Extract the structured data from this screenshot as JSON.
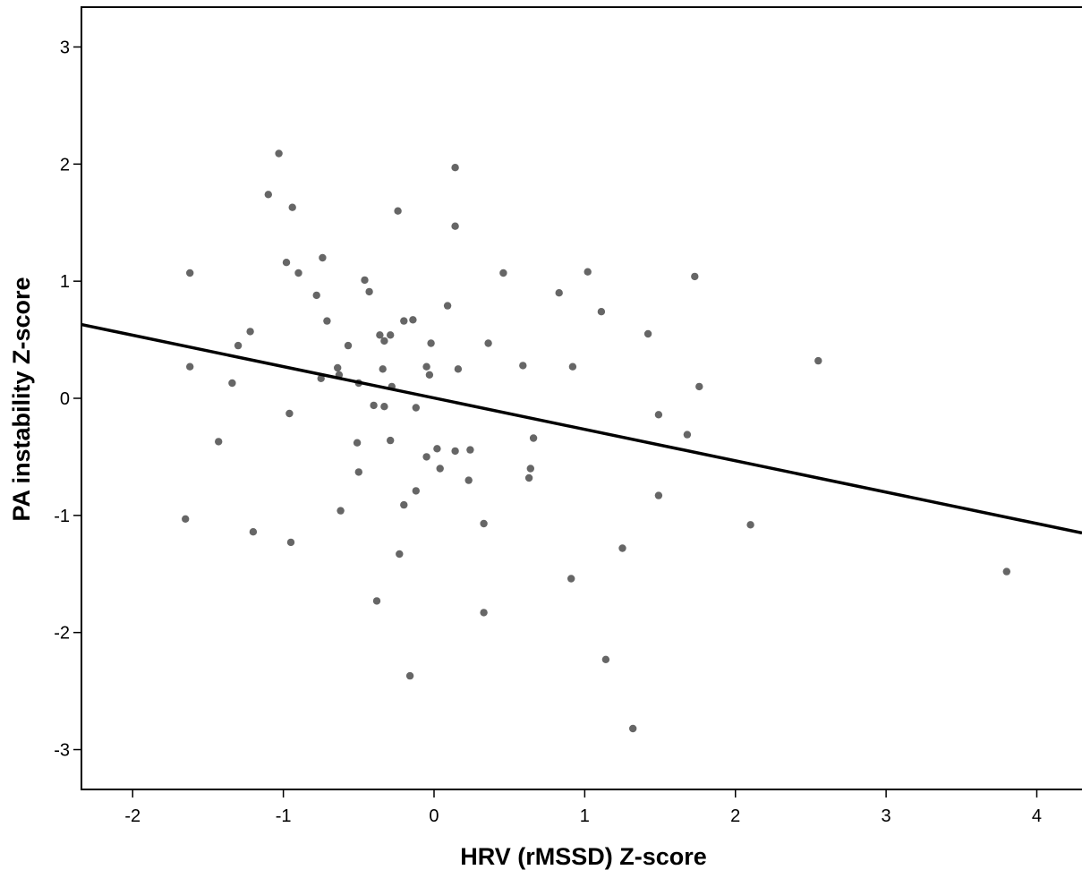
{
  "chart_data": {
    "type": "scatter",
    "title": "",
    "xlabel": "HRV (rMSSD) Z-score",
    "ylabel": "PA instability Z-score",
    "xlim": [
      -2.34,
      4.3
    ],
    "ylim": [
      -3.34,
      3.34
    ],
    "x_ticks": [
      -2,
      -1,
      0,
      1,
      2,
      3,
      4
    ],
    "y_ticks": [
      3,
      2,
      1,
      0,
      -1,
      -2,
      -3
    ],
    "x_tick_labels": [
      "-2",
      "-1",
      "0",
      "1",
      "2",
      "3",
      "4"
    ],
    "y_tick_labels": [
      "3",
      "2",
      "1",
      "0",
      "-1",
      "-2",
      "-3"
    ],
    "grid": false,
    "marker_color": "#666666",
    "fit_line": {
      "x": [
        -2.34,
        4.3
      ],
      "y": [
        0.63,
        -1.15
      ],
      "color": "#000000"
    },
    "points": [
      [
        -1.03,
        2.09
      ],
      [
        -1.1,
        1.74
      ],
      [
        -0.94,
        1.63
      ],
      [
        0.14,
        1.97
      ],
      [
        -0.24,
        1.6
      ],
      [
        0.14,
        1.47
      ],
      [
        -1.62,
        1.07
      ],
      [
        -0.98,
        1.16
      ],
      [
        -0.9,
        1.07
      ],
      [
        -0.74,
        1.2
      ],
      [
        -0.46,
        1.01
      ],
      [
        -0.43,
        0.91
      ],
      [
        -0.78,
        0.88
      ],
      [
        0.46,
        1.07
      ],
      [
        1.02,
        1.08
      ],
      [
        1.73,
        1.04
      ],
      [
        0.83,
        0.9
      ],
      [
        0.09,
        0.79
      ],
      [
        1.11,
        0.74
      ],
      [
        -0.71,
        0.66
      ],
      [
        -0.2,
        0.66
      ],
      [
        -0.14,
        0.67
      ],
      [
        -1.22,
        0.57
      ],
      [
        -0.36,
        0.54
      ],
      [
        -0.29,
        0.54
      ],
      [
        1.42,
        0.55
      ],
      [
        -1.3,
        0.45
      ],
      [
        -0.57,
        0.45
      ],
      [
        -0.33,
        0.49
      ],
      [
        -0.02,
        0.47
      ],
      [
        0.36,
        0.47
      ],
      [
        2.55,
        0.32
      ],
      [
        -1.62,
        0.27
      ],
      [
        -0.64,
        0.26
      ],
      [
        -0.34,
        0.25
      ],
      [
        -0.05,
        0.27
      ],
      [
        0.16,
        0.25
      ],
      [
        0.59,
        0.28
      ],
      [
        0.92,
        0.27
      ],
      [
        -0.63,
        0.2
      ],
      [
        -0.75,
        0.17
      ],
      [
        -0.03,
        0.2
      ],
      [
        -1.34,
        0.13
      ],
      [
        -0.5,
        0.13
      ],
      [
        -0.28,
        0.1
      ],
      [
        1.76,
        0.1
      ],
      [
        -0.4,
        -0.06
      ],
      [
        -0.33,
        -0.07
      ],
      [
        -0.12,
        -0.08
      ],
      [
        -0.96,
        -0.13
      ],
      [
        1.49,
        -0.14
      ],
      [
        1.68,
        -0.31
      ],
      [
        -1.43,
        -0.37
      ],
      [
        -0.51,
        -0.38
      ],
      [
        -0.29,
        -0.36
      ],
      [
        0.66,
        -0.34
      ],
      [
        0.02,
        -0.43
      ],
      [
        0.14,
        -0.45
      ],
      [
        0.24,
        -0.44
      ],
      [
        -0.05,
        -0.5
      ],
      [
        -0.5,
        -0.63
      ],
      [
        0.04,
        -0.6
      ],
      [
        0.64,
        -0.6
      ],
      [
        0.63,
        -0.68
      ],
      [
        0.23,
        -0.7
      ],
      [
        -0.12,
        -0.79
      ],
      [
        1.49,
        -0.83
      ],
      [
        -0.2,
        -0.91
      ],
      [
        -0.62,
        -0.96
      ],
      [
        -1.65,
        -1.03
      ],
      [
        0.33,
        -1.07
      ],
      [
        2.1,
        -1.08
      ],
      [
        -1.2,
        -1.14
      ],
      [
        -0.95,
        -1.23
      ],
      [
        1.25,
        -1.28
      ],
      [
        -0.23,
        -1.33
      ],
      [
        3.8,
        -1.48
      ],
      [
        0.91,
        -1.54
      ],
      [
        -0.38,
        -1.73
      ],
      [
        0.33,
        -1.83
      ],
      [
        1.14,
        -2.23
      ],
      [
        -0.16,
        -2.37
      ],
      [
        1.32,
        -2.82
      ]
    ]
  }
}
